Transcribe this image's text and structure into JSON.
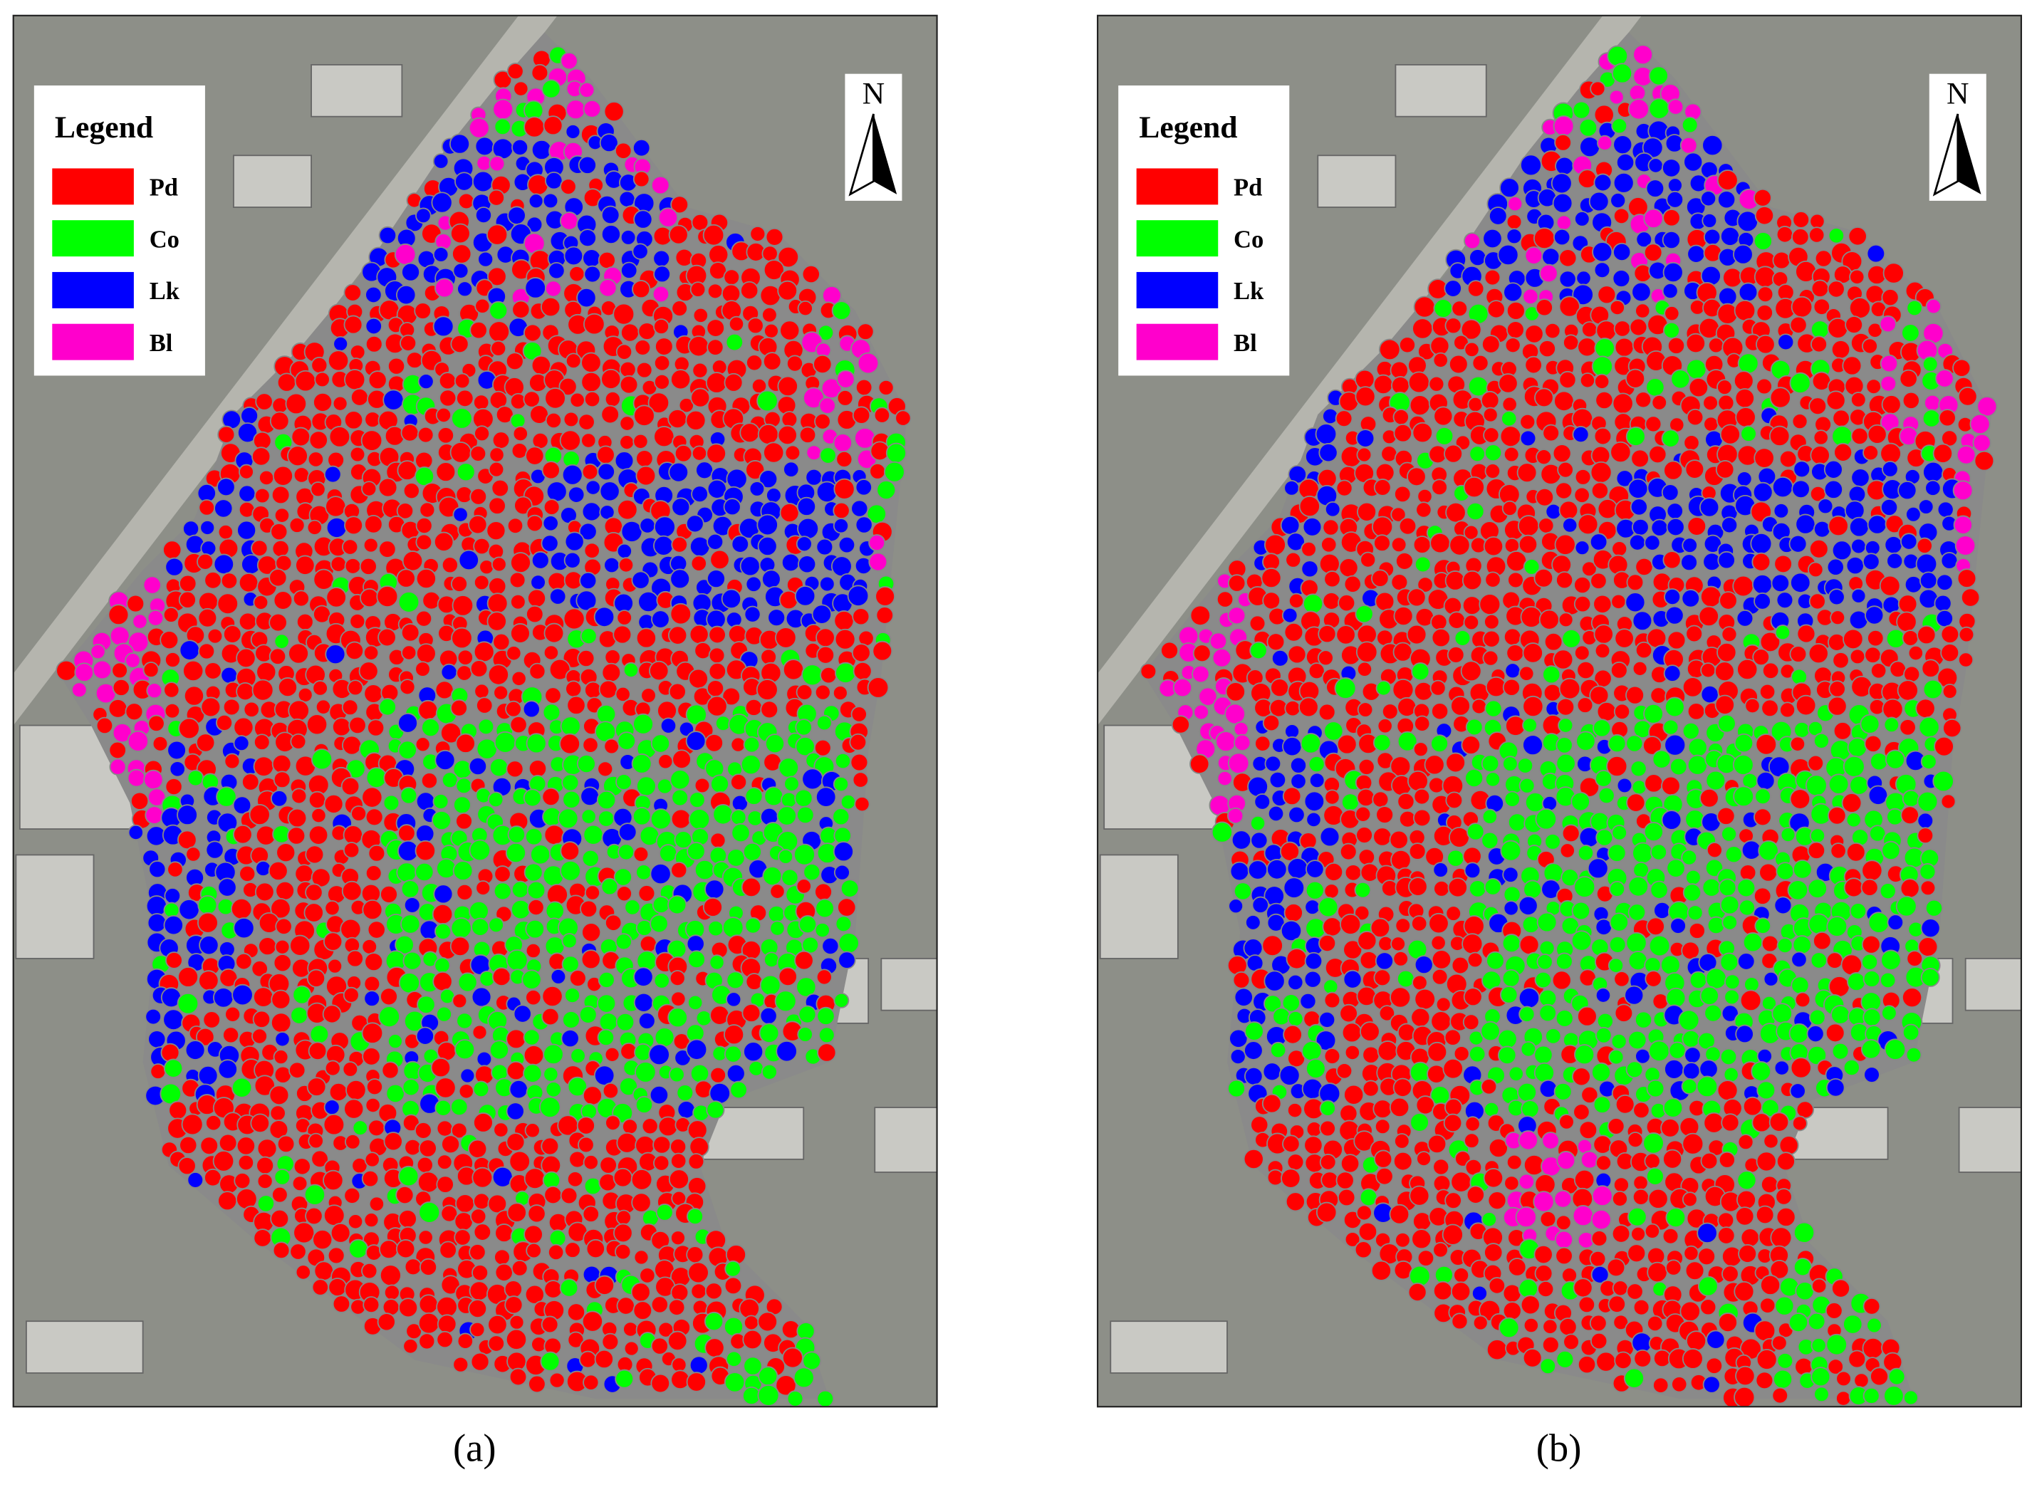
{
  "panels": [
    {
      "caption": "(a)",
      "north": "N",
      "legend": {
        "title": "Legend",
        "items": [
          {
            "label": "Pd",
            "color": "#ff0000"
          },
          {
            "label": "Co",
            "color": "#00ff00"
          },
          {
            "label": "Lk",
            "color": "#0000ff"
          },
          {
            "label": "Bl",
            "color": "#ff00cc"
          }
        ]
      }
    },
    {
      "caption": "(b)",
      "north": "N",
      "legend": {
        "title": "Legend",
        "items": [
          {
            "label": "Pd",
            "color": "#ff0000"
          },
          {
            "label": "Co",
            "color": "#00ff00"
          },
          {
            "label": "Lk",
            "color": "#0000ff"
          },
          {
            "label": "Bl",
            "color": "#ff00cc"
          }
        ]
      }
    }
  ]
}
